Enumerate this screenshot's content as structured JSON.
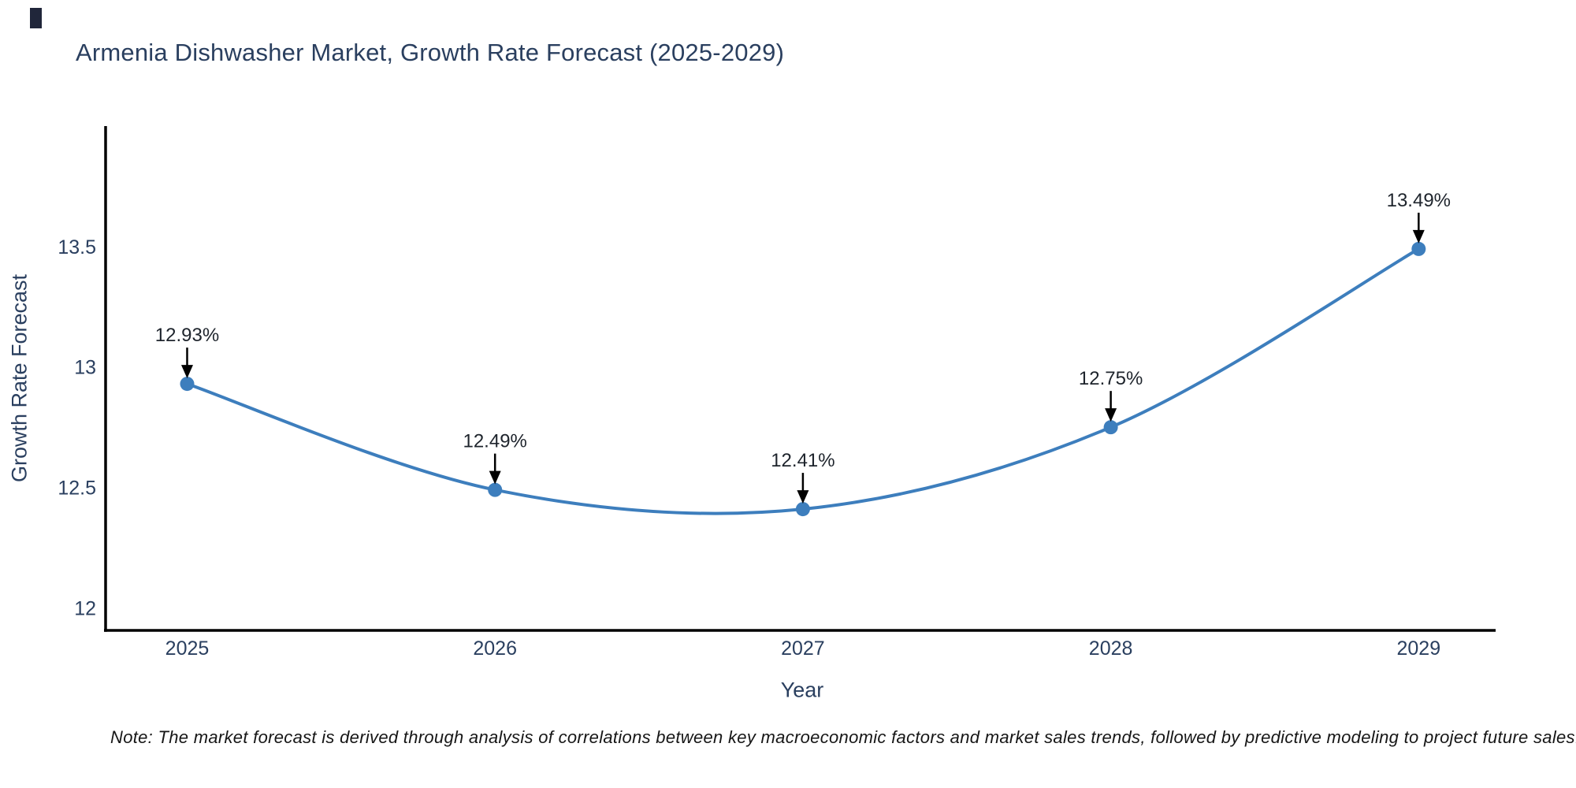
{
  "header": {
    "title": "Armenia Dishwasher Market, Growth Rate Forecast (2025-2029)"
  },
  "footnote": {
    "text": "Note: The market forecast is derived through analysis of correlations between key macroeconomic factors and market sales trends, followed by predictive modeling to project future sales."
  },
  "chart_data": {
    "type": "line",
    "title": "Armenia Dishwasher Market, Growth Rate Forecast (2025-2029)",
    "xlabel": "Year",
    "ylabel": "Growth Rate Forecast",
    "x": [
      2025,
      2026,
      2027,
      2028,
      2029
    ],
    "x_tick_labels": [
      "2025",
      "2026",
      "2027",
      "2028",
      "2029"
    ],
    "series": [
      {
        "name": "Growth Rate Forecast",
        "values": [
          12.93,
          12.49,
          12.41,
          12.75,
          13.49
        ]
      }
    ],
    "point_labels": [
      "12.93%",
      "12.49%",
      "12.41%",
      "12.75%",
      "13.49%"
    ],
    "yticks": [
      12,
      12.5,
      13,
      13.5
    ],
    "ytick_labels": [
      "12",
      "12.5",
      "13",
      "13.5"
    ],
    "xlim": [
      2024.73,
      2029.25
    ],
    "ylim": [
      11.9,
      14.0
    ],
    "grid": false,
    "legend_position": "none",
    "line_shape": "spline",
    "annotation_arrows": true,
    "colors": {
      "line": "#3d7ebd",
      "marker": "#3d7ebd",
      "axis": "#000000",
      "tick_text": "#2a3f5f",
      "annotation_text": "#1e242c",
      "arrow": "#000000"
    }
  }
}
